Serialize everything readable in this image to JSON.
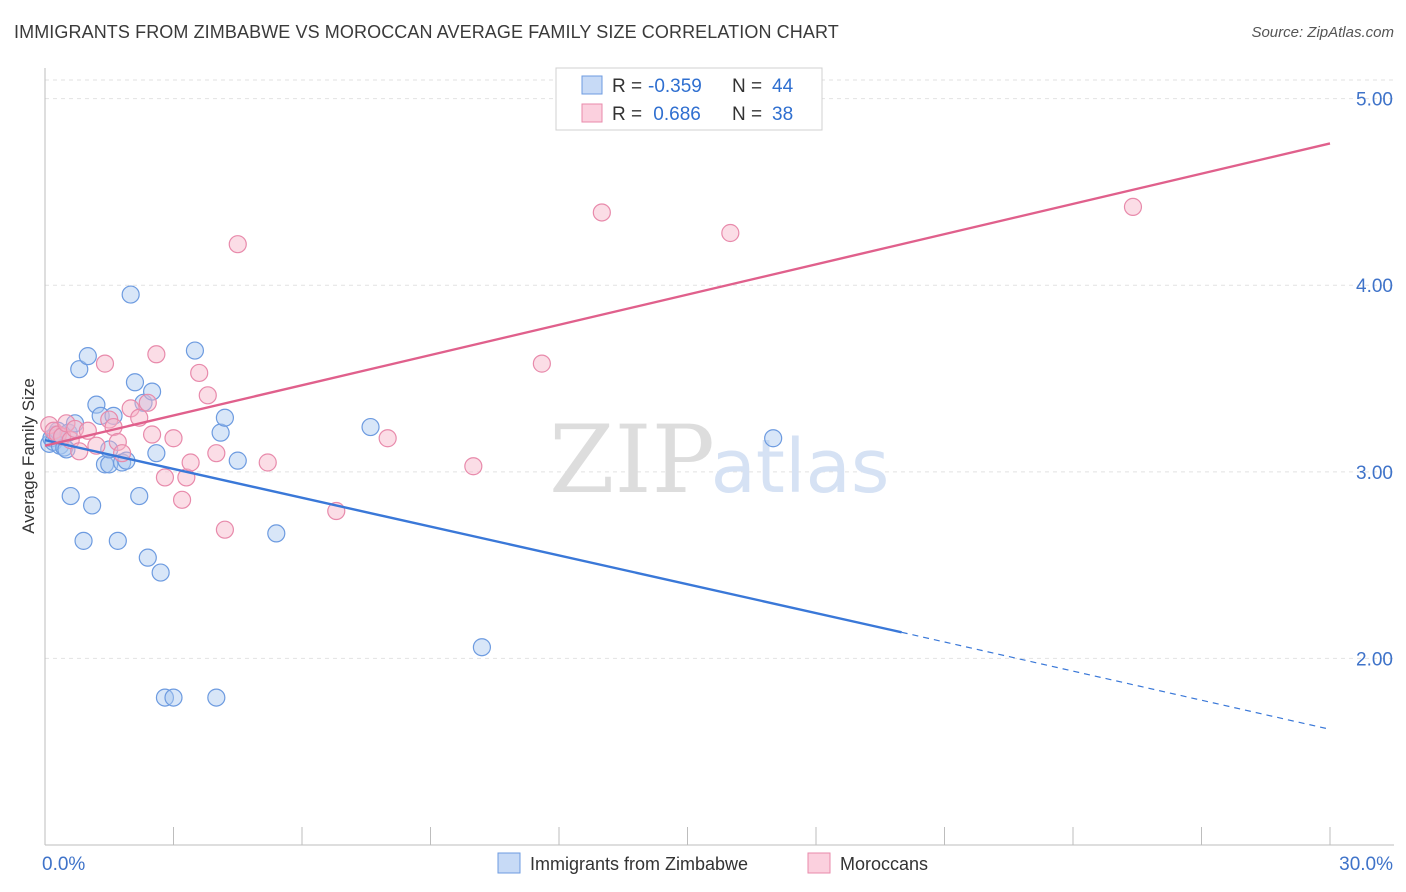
{
  "header": {
    "title": "IMMIGRANTS FROM ZIMBABWE VS MOROCCAN AVERAGE FAMILY SIZE CORRELATION CHART",
    "source": "Source: ZipAtlas.com"
  },
  "watermark": {
    "zip": "ZIP",
    "atlas": "atlas"
  },
  "colors": {
    "blue": "#3a78d8",
    "blue_fill": "#a9c7f0",
    "pink": "#e0608c",
    "pink_fill": "#f6b3c8",
    "grid": "#e2e2e2",
    "tick": "#3f73c9"
  },
  "legend": {
    "rows": [
      {
        "r_label": "R = ",
        "r_value": "-0.359",
        "n_label": "N = ",
        "n_value": "44",
        "color": "blue"
      },
      {
        "r_label": "R = ",
        "r_value": " 0.686",
        "n_label": "N = ",
        "n_value": "38",
        "color": "pink"
      }
    ]
  },
  "bottom_legend": [
    "Immigrants from Zimbabwe",
    "Moroccans"
  ],
  "chart_data": {
    "type": "scatter",
    "title": "IMMIGRANTS FROM ZIMBABWE VS MOROCCAN AVERAGE FAMILY SIZE CORRELATION CHART",
    "xlabel": "",
    "ylabel": "Average Family Size",
    "xlim": [
      0,
      30
    ],
    "ylim": [
      1.0,
      5.1
    ],
    "x_tick_labels": [
      "0.0%",
      "30.0%"
    ],
    "x_tick_values": [
      0,
      30
    ],
    "y_ticks": [
      2.0,
      3.0,
      4.0,
      5.0
    ],
    "y_tick_labels": [
      "2.00",
      "3.00",
      "4.00",
      "5.00"
    ],
    "grid": true,
    "legend_position": "top-center",
    "series": [
      {
        "name": "Immigrants from Zimbabwe",
        "color": "blue",
        "x": [
          0.1,
          0.15,
          0.2,
          0.25,
          0.3,
          0.35,
          0.4,
          0.45,
          0.5,
          0.55,
          0.6,
          0.7,
          0.8,
          0.9,
          1.0,
          1.1,
          1.2,
          1.3,
          1.4,
          1.5,
          1.5,
          1.6,
          1.7,
          1.8,
          1.9,
          2.0,
          2.1,
          2.2,
          2.3,
          2.4,
          2.5,
          2.6,
          2.7,
          2.8,
          3.0,
          3.5,
          4.1,
          4.2,
          4.5,
          5.4,
          7.6,
          10.2,
          17.0,
          4.0
        ],
        "y": [
          3.15,
          3.18,
          3.16,
          3.2,
          3.22,
          3.14,
          3.19,
          3.13,
          3.12,
          3.21,
          2.87,
          3.26,
          3.55,
          2.63,
          3.62,
          2.82,
          3.36,
          3.3,
          3.04,
          3.04,
          3.12,
          3.3,
          2.63,
          3.05,
          3.06,
          3.95,
          3.48,
          2.87,
          3.37,
          2.54,
          3.43,
          3.1,
          2.46,
          1.79,
          1.79,
          3.65,
          3.21,
          3.29,
          3.06,
          2.67,
          3.24,
          2.06,
          3.18,
          1.79
        ]
      },
      {
        "name": "Moroccans",
        "color": "pink",
        "x": [
          0.1,
          0.2,
          0.3,
          0.4,
          0.5,
          0.6,
          0.7,
          0.8,
          1.0,
          1.2,
          1.4,
          1.5,
          1.6,
          1.7,
          1.8,
          2.0,
          2.2,
          2.4,
          2.5,
          2.6,
          2.8,
          3.0,
          3.2,
          3.3,
          3.4,
          3.6,
          3.8,
          4.0,
          4.2,
          4.5,
          5.2,
          6.8,
          10.0,
          11.6,
          13.0,
          16.0,
          25.4,
          8.0
        ],
        "y": [
          3.25,
          3.22,
          3.2,
          3.19,
          3.26,
          3.17,
          3.23,
          3.11,
          3.22,
          3.14,
          3.58,
          3.28,
          3.24,
          3.16,
          3.1,
          3.34,
          3.29,
          3.37,
          3.2,
          3.63,
          2.97,
          3.18,
          2.85,
          2.97,
          3.05,
          3.53,
          3.41,
          3.1,
          2.69,
          4.22,
          3.05,
          2.79,
          3.03,
          3.58,
          4.39,
          4.28,
          4.42,
          3.18
        ]
      }
    ],
    "trendlines": [
      {
        "series": "Immigrants from Zimbabwe",
        "x_start": 0,
        "y_start": 3.17,
        "x_solid_end": 20.0,
        "y_solid_end": 2.14,
        "x_end": 30,
        "y_end": 1.62
      },
      {
        "series": "Moroccans",
        "x_start": 0,
        "y_start": 3.14,
        "x_end": 30,
        "y_end": 4.76
      }
    ]
  }
}
